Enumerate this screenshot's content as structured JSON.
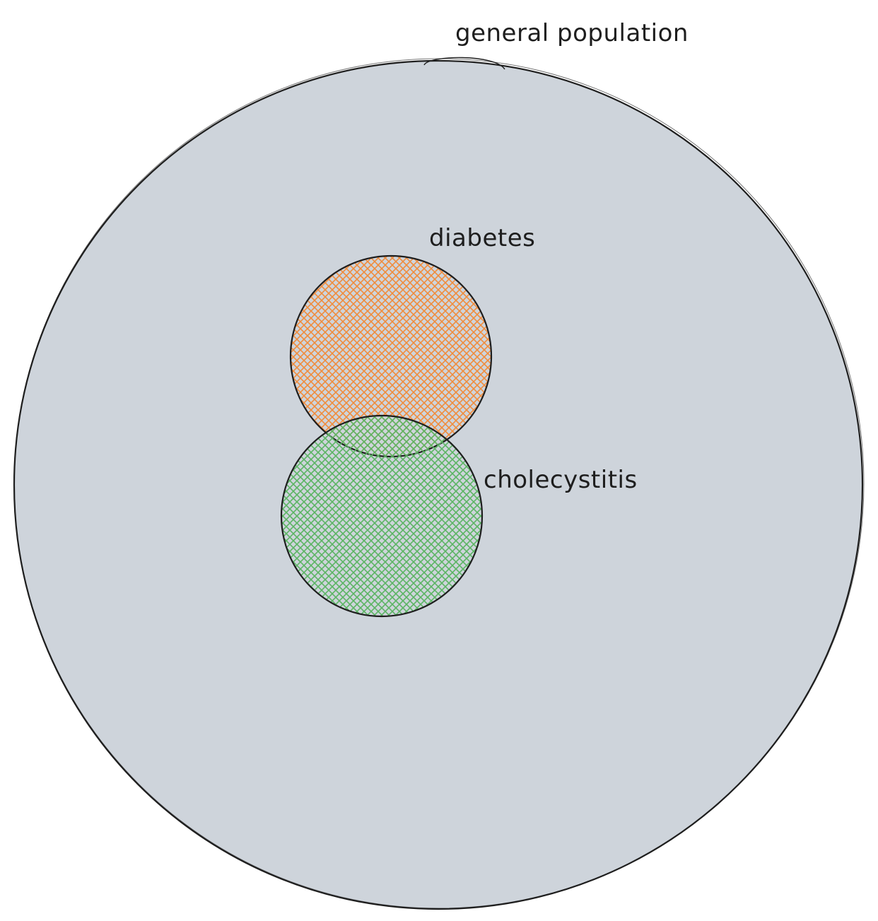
{
  "diagram": {
    "type": "venn",
    "colors": {
      "population_fill": "#ced4db",
      "diabetes_hatch": "#f08c3c",
      "cholecystitis_hatch": "#5bb563",
      "stroke": "#1e1e1e"
    },
    "sets": {
      "population": {
        "label": "general population"
      },
      "diabetes": {
        "label": "diabetes"
      },
      "cholecystitis": {
        "label": "cholecystitis"
      }
    }
  }
}
